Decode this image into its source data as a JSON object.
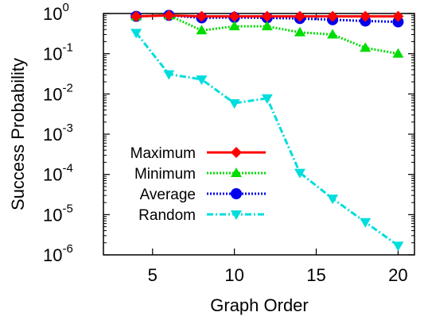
{
  "chart_data": {
    "type": "line",
    "title": "",
    "xlabel": "Graph Order",
    "ylabel": "Success Probability",
    "x": [
      4,
      6,
      8,
      10,
      12,
      14,
      16,
      18,
      20
    ],
    "xlim": [
      2,
      21
    ],
    "ylim": [
      1e-06,
      1
    ],
    "yscale": "log",
    "x_ticks": [
      "5",
      "10",
      "15",
      "20"
    ],
    "y_ticks": [
      {
        "base": "10",
        "exp": "0"
      },
      {
        "base": "10",
        "exp": "-1"
      },
      {
        "base": "10",
        "exp": "-2"
      },
      {
        "base": "10",
        "exp": "-3"
      },
      {
        "base": "10",
        "exp": "-4"
      },
      {
        "base": "10",
        "exp": "-5"
      },
      {
        "base": "10",
        "exp": "-6"
      }
    ],
    "legend_position": "left-center",
    "grid": false,
    "series": [
      {
        "name": "Maximum",
        "color": "#ff0000",
        "marker": "diamond",
        "dash": "solid",
        "values": [
          0.85,
          0.9,
          0.85,
          0.85,
          0.85,
          0.85,
          0.85,
          0.85,
          0.85
        ]
      },
      {
        "name": "Minimum",
        "color": "#00dd00",
        "marker": "triangle-up",
        "dash": "dotted",
        "values": [
          0.85,
          0.9,
          0.38,
          0.48,
          0.48,
          0.34,
          0.3,
          0.14,
          0.1
        ]
      },
      {
        "name": "Average",
        "color": "#0000ee",
        "marker": "circle",
        "dash": "dotted",
        "values": [
          0.85,
          0.9,
          0.78,
          0.8,
          0.78,
          0.75,
          0.7,
          0.65,
          0.62
        ]
      },
      {
        "name": "Random",
        "color": "#00dddd",
        "marker": "triangle-down",
        "dash": "dashdot",
        "values": [
          0.33,
          0.031,
          0.023,
          0.0059,
          0.0078,
          0.00011,
          2.5e-05,
          6.5e-06,
          1.7e-06
        ]
      }
    ]
  }
}
